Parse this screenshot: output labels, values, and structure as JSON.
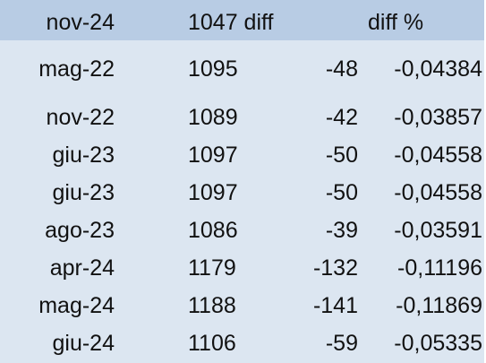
{
  "header": {
    "date": "nov-24",
    "value": "1047 diff",
    "pct": "diff %"
  },
  "rows": [
    {
      "date": "mag-22",
      "value": "1095",
      "diff": "-48",
      "pct": "-0,04384"
    },
    {
      "date": "nov-22",
      "value": "1089",
      "diff": "-42",
      "pct": "-0,03857"
    },
    {
      "date": "giu-23",
      "value": "1097",
      "diff": "-50",
      "pct": "-0,04558"
    },
    {
      "date": "giu-23",
      "value": "1097",
      "diff": "-50",
      "pct": "-0,04558"
    },
    {
      "date": "ago-23",
      "value": "1086",
      "diff": "-39",
      "pct": "-0,03591"
    },
    {
      "date": "apr-24",
      "value": "1179",
      "diff": "-132",
      "pct": "-0,11196"
    },
    {
      "date": "mag-24",
      "value": "1188",
      "diff": "-141",
      "pct": "-0,11869"
    },
    {
      "date": "giu-24",
      "value": "1106",
      "diff": "-59",
      "pct": "-0,05335"
    }
  ],
  "colors": {
    "header_fill": "#b8cce4",
    "body_fill": "#dce6f1"
  }
}
